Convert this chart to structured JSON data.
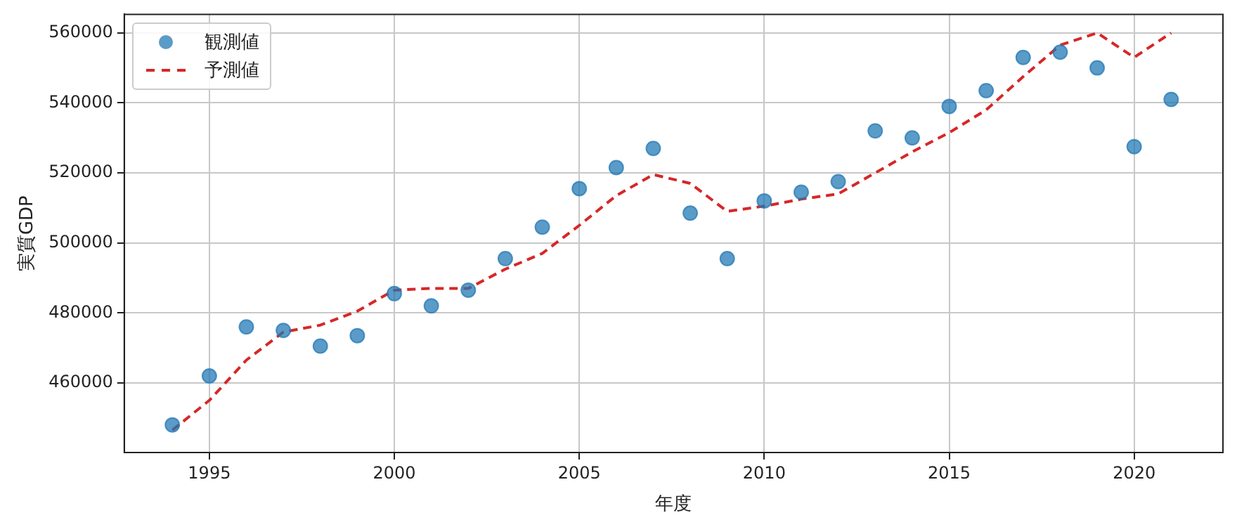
{
  "chart_data": {
    "type": "scatter",
    "xlabel": "年度",
    "ylabel": "実質GDP",
    "x": [
      1994,
      1995,
      1996,
      1997,
      1998,
      1999,
      2000,
      2001,
      2002,
      2003,
      2004,
      2005,
      2006,
      2007,
      2008,
      2009,
      2010,
      2011,
      2012,
      2013,
      2014,
      2015,
      2016,
      2017,
      2018,
      2019,
      2020,
      2021
    ],
    "series": [
      {
        "name": "観測値",
        "marker": "circle",
        "color": "#1f77b4",
        "values": [
          448000,
          462000,
          476000,
          475000,
          470500,
          473500,
          485500,
          482000,
          486500,
          495500,
          504500,
          515500,
          521500,
          527000,
          508500,
          495500,
          512000,
          514500,
          517500,
          532000,
          530000,
          539000,
          543500,
          553000,
          554500,
          550000,
          527500,
          541000
        ]
      },
      {
        "name": "予測値",
        "type": "line",
        "line_style": "dashed",
        "marker": "none",
        "color": "#d62728",
        "values": [
          446500,
          455000,
          466500,
          474500,
          476500,
          480500,
          486500,
          487000,
          487000,
          492500,
          497000,
          505000,
          513500,
          519500,
          517000,
          509000,
          510500,
          512500,
          514000,
          520000,
          526000,
          531500,
          538000,
          547500,
          556500,
          560000,
          553000,
          560000
        ]
      }
    ],
    "xlim": [
      1992.7,
      2022.4
    ],
    "xticks": [
      1995,
      2000,
      2005,
      2010,
      2015,
      2020
    ],
    "ylim": [
      440100,
      565300
    ],
    "yticks": [
      460000,
      480000,
      500000,
      520000,
      540000,
      560000
    ],
    "grid": true,
    "legend": "top left"
  }
}
